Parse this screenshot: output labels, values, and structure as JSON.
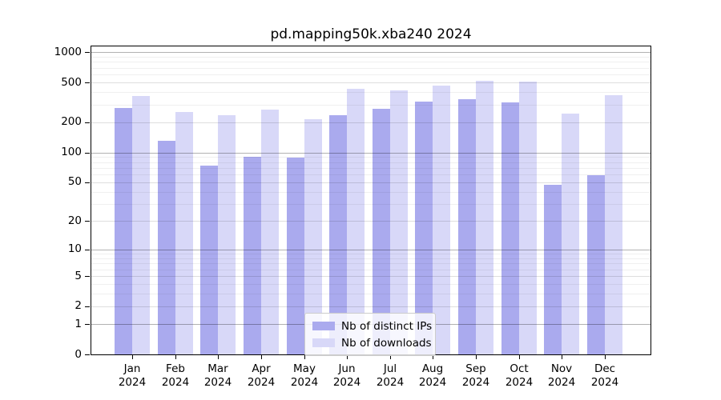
{
  "chart_data": {
    "type": "bar",
    "title": "pd.mapping50k.xba240 2024",
    "categories": [
      "Jan",
      "Feb",
      "Mar",
      "Apr",
      "May",
      "Jun",
      "Jul",
      "Aug",
      "Sep",
      "Oct",
      "Nov",
      "Dec"
    ],
    "x_tick_year": "2024",
    "series": [
      {
        "name": "Nb of distinct IPs",
        "color": "#aaaaee",
        "values": [
          280,
          130,
          74,
          91,
          89,
          235,
          272,
          323,
          343,
          317,
          47,
          59
        ]
      },
      {
        "name": "Nb of downloads",
        "color": "#d8d8f8",
        "values": [
          365,
          255,
          235,
          270,
          215,
          430,
          420,
          465,
          520,
          510,
          245,
          370
        ]
      }
    ],
    "yscale": "log10(1+v)",
    "y_ticks": [
      1000,
      500,
      200,
      100,
      50,
      20,
      10,
      5,
      2,
      1,
      0
    ],
    "ylim": [
      0,
      1140
    ],
    "grid": true,
    "legend_position": "lower-center"
  },
  "colors": {
    "bar_dark": "#aaaaee",
    "bar_light": "#d8d8f8",
    "grid_major": "rgba(0,0,0,0.30)",
    "grid_mid": "rgba(0,0,0,0.13)",
    "grid_minor": "rgba(0,0,0,0.06)",
    "frame": "#000000",
    "background": "#ffffff"
  }
}
